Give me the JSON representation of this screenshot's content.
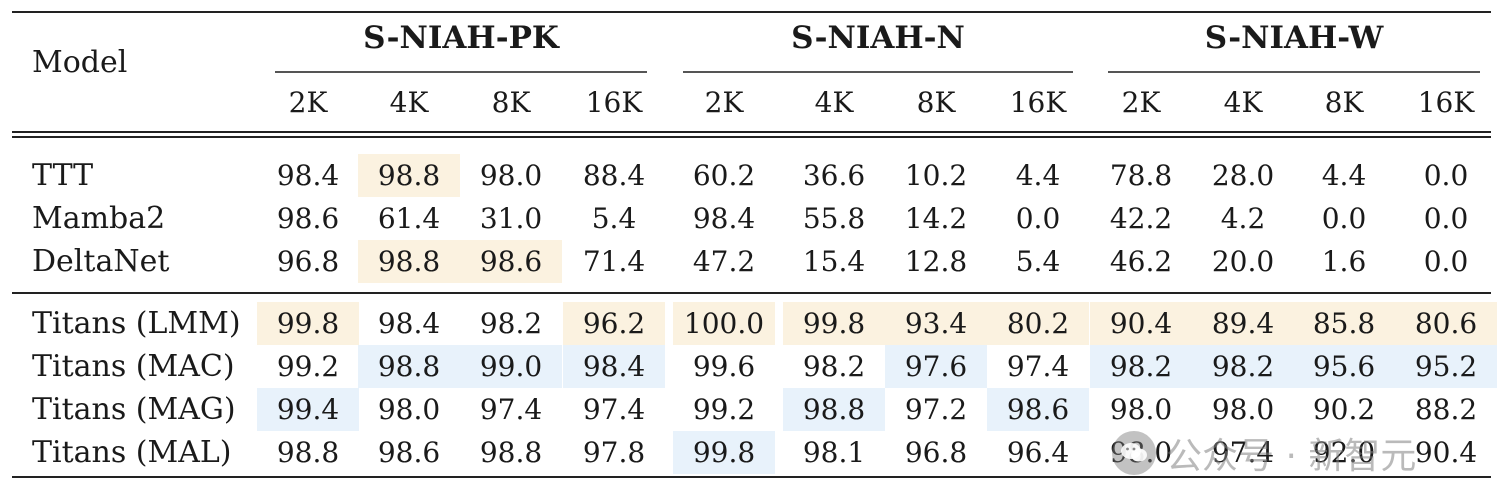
{
  "header": {
    "model_label": "Model",
    "groups": [
      "S-NIAH-PK",
      "S-NIAH-N",
      "S-NIAH-W"
    ],
    "lengths": [
      "2K",
      "4K",
      "8K",
      "16K"
    ]
  },
  "highlight_colors": {
    "y": "#fbf2e0",
    "b": "#e8f2fb"
  },
  "sections": [
    [
      {
        "model": "TTT",
        "values": [
          "98.4",
          "98.8",
          "98.0",
          "88.4",
          "60.2",
          "36.6",
          "10.2",
          "4.4",
          "78.8",
          "28.0",
          "4.4",
          "0.0"
        ],
        "hl": [
          "",
          "y",
          "",
          "",
          "",
          "",
          "",
          "",
          "",
          "",
          "",
          ""
        ]
      },
      {
        "model": "Mamba2",
        "values": [
          "98.6",
          "61.4",
          "31.0",
          "5.4",
          "98.4",
          "55.8",
          "14.2",
          "0.0",
          "42.2",
          "4.2",
          "0.0",
          "0.0"
        ],
        "hl": [
          "",
          "",
          "",
          "",
          "",
          "",
          "",
          "",
          "",
          "",
          "",
          ""
        ]
      },
      {
        "model": "DeltaNet",
        "values": [
          "96.8",
          "98.8",
          "98.6",
          "71.4",
          "47.2",
          "15.4",
          "12.8",
          "5.4",
          "46.2",
          "20.0",
          "1.6",
          "0.0"
        ],
        "hl": [
          "",
          "y",
          "y",
          "",
          "",
          "",
          "",
          "",
          "",
          "",
          "",
          ""
        ]
      }
    ],
    [
      {
        "model": "Titans (LMM)",
        "values": [
          "99.8",
          "98.4",
          "98.2",
          "96.2",
          "100.0",
          "99.8",
          "93.4",
          "80.2",
          "90.4",
          "89.4",
          "85.8",
          "80.6"
        ],
        "hl": [
          "y",
          "",
          "",
          "y",
          "y",
          "y",
          "y",
          "y",
          "y",
          "y",
          "y",
          "y"
        ]
      },
      {
        "model": "Titans (MAC)",
        "values": [
          "99.2",
          "98.8",
          "99.0",
          "98.4",
          "99.6",
          "98.2",
          "97.6",
          "97.4",
          "98.2",
          "98.2",
          "95.6",
          "95.2"
        ],
        "hl": [
          "",
          "b",
          "b",
          "b",
          "",
          "",
          "b",
          "",
          "b",
          "b",
          "b",
          "b"
        ]
      },
      {
        "model": "Titans (MAG)",
        "values": [
          "99.4",
          "98.0",
          "97.4",
          "97.4",
          "99.2",
          "98.8",
          "97.2",
          "98.6",
          "98.0",
          "98.0",
          "90.2",
          "88.2"
        ],
        "hl": [
          "b",
          "",
          "",
          "",
          "",
          "b",
          "",
          "b",
          "",
          "",
          "",
          ""
        ]
      },
      {
        "model": "Titans (MAL)",
        "values": [
          "98.8",
          "98.6",
          "98.8",
          "97.8",
          "99.8",
          "98.1",
          "96.8",
          "96.4",
          "98.0",
          "97.4",
          "92.0",
          "90.4"
        ],
        "hl": [
          "",
          "",
          "",
          "",
          "b",
          "",
          "",
          "",
          "",
          "",
          "",
          ""
        ]
      }
    ]
  ],
  "watermark": {
    "text": "公众号 · 新智元",
    "icon": "wechat-icon"
  }
}
